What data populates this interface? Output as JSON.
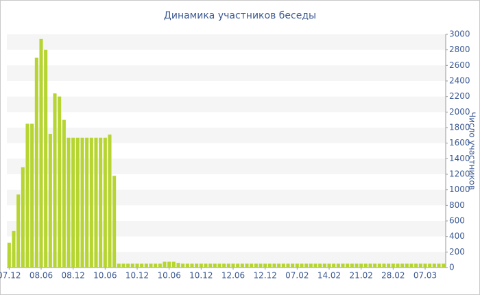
{
  "chart_data": {
    "type": "bar",
    "title": "Динамика участников беседы",
    "y_label": "Число участников",
    "categories": [
      "07.12",
      null,
      null,
      null,
      null,
      null,
      null,
      "08.06",
      null,
      null,
      null,
      null,
      null,
      null,
      "08.12",
      null,
      null,
      null,
      null,
      null,
      null,
      "10.06",
      null,
      null,
      null,
      null,
      null,
      null,
      "10.12",
      null,
      null,
      null,
      null,
      null,
      null,
      "10.06",
      null,
      null,
      null,
      null,
      null,
      null,
      "10.12",
      null,
      null,
      null,
      null,
      null,
      null,
      "12.06",
      null,
      null,
      null,
      null,
      null,
      null,
      "12.12",
      null,
      null,
      null,
      null,
      null,
      null,
      "07.02",
      null,
      null,
      null,
      null,
      null,
      null,
      "14.02",
      null,
      null,
      null,
      null,
      null,
      null,
      "21.02",
      null,
      null,
      null,
      null,
      null,
      null,
      "28.02",
      null,
      null,
      null,
      null,
      null,
      null,
      "07.03",
      null,
      null,
      null,
      null
    ],
    "values": [
      320,
      470,
      940,
      1290,
      1850,
      1850,
      2700,
      2940,
      2800,
      1720,
      2240,
      2200,
      1900,
      1670,
      1670,
      1670,
      1670,
      1670,
      1670,
      1670,
      1670,
      1670,
      1710,
      1180,
      50,
      50,
      50,
      50,
      50,
      50,
      50,
      50,
      50,
      50,
      75,
      75,
      75,
      60,
      50,
      50,
      50,
      50,
      50,
      50,
      50,
      50,
      50,
      50,
      50,
      50,
      50,
      50,
      50,
      50,
      50,
      50,
      50,
      50,
      50,
      50,
      50,
      50,
      50,
      50,
      50,
      50,
      50,
      50,
      50,
      50,
      50,
      50,
      50,
      50,
      50,
      50,
      50,
      50,
      50,
      50,
      50,
      50,
      50,
      50,
      50,
      50,
      50,
      50,
      50,
      50,
      50,
      50,
      50,
      50,
      50,
      50
    ],
    "color": "#b6d531",
    "ylim": [
      0,
      3000
    ],
    "yticks": [
      0,
      200,
      400,
      600,
      800,
      1000,
      1200,
      1400,
      1600,
      1800,
      2000,
      2200,
      2400,
      2600,
      2800,
      3000
    ],
    "grid": true
  }
}
